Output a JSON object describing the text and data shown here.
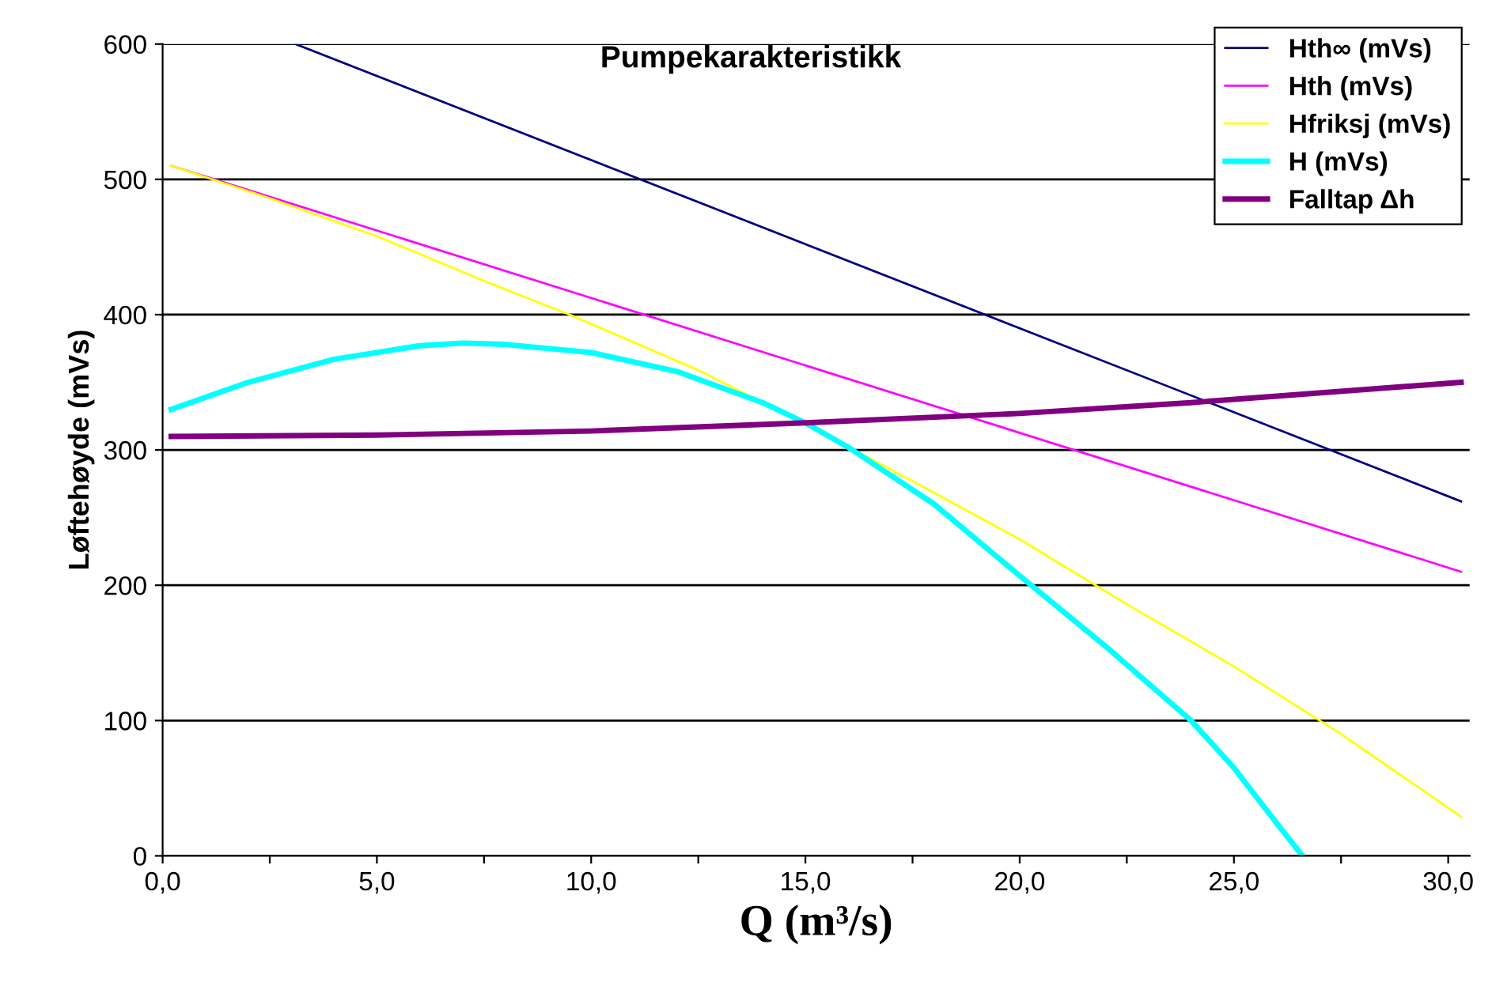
{
  "chart_data": {
    "type": "line",
    "title": "Pumpekarakteristikk",
    "xlabel": "Q (m³/s)",
    "ylabel": "Løftehøyde (mVs)",
    "xlim": [
      0,
      30.5
    ],
    "ylim": [
      0,
      600
    ],
    "xticks": [
      {
        "value": 0,
        "label": "0,0"
      },
      {
        "value": 2.5,
        "label": null
      },
      {
        "value": 5,
        "label": "5,0"
      },
      {
        "value": 7.5,
        "label": null
      },
      {
        "value": 10,
        "label": "10,0"
      },
      {
        "value": 12.5,
        "label": null
      },
      {
        "value": 15,
        "label": "15,0"
      },
      {
        "value": 17.5,
        "label": null
      },
      {
        "value": 20,
        "label": "20,0"
      },
      {
        "value": 22.5,
        "label": null
      },
      {
        "value": 25,
        "label": "25,0"
      },
      {
        "value": 27.5,
        "label": null
      },
      {
        "value": 30,
        "label": "30,0"
      }
    ],
    "yticks": [
      0,
      100,
      200,
      300,
      400,
      500,
      600
    ],
    "grid": "y",
    "legend": "top right",
    "series": [
      {
        "name": "Hth∞ (mVs)",
        "color": "#000080",
        "x": [
          3.1,
          30.3
        ],
        "values": [
          600,
          262
        ]
      },
      {
        "name": "Hth (mVs)",
        "color": "#ff00ff",
        "x": [
          0.2,
          30.3
        ],
        "values": [
          510,
          210
        ]
      },
      {
        "name": "Hfriksj (mVs)",
        "color": "#ffff00",
        "x": [
          0.2,
          2.5,
          5,
          7.5,
          9.5,
          12.5,
          15,
          17.5,
          20,
          22.5,
          25,
          27.5,
          30.3
        ],
        "values": [
          510,
          486,
          458,
          425,
          400,
          359,
          319,
          277,
          234,
          186,
          140,
          90,
          29
        ]
      },
      {
        "name": "H (mVs)",
        "color": "#00ffff",
        "x": [
          0.2,
          2,
          4,
          6,
          7,
          8,
          10,
          12,
          14,
          15,
          16,
          18,
          20,
          22,
          24,
          25,
          26,
          26.6
        ],
        "values": [
          330,
          350,
          367,
          377,
          379,
          378,
          372,
          358,
          335,
          320,
          302,
          260,
          207,
          155,
          100,
          65,
          24,
          0
        ]
      },
      {
        "name": "Falltap Δh",
        "color": "#800080",
        "x": [
          0.2,
          5,
          10,
          15,
          20,
          24,
          30.3
        ],
        "values": [
          310,
          311,
          314,
          320,
          327,
          335,
          350
        ]
      }
    ]
  }
}
